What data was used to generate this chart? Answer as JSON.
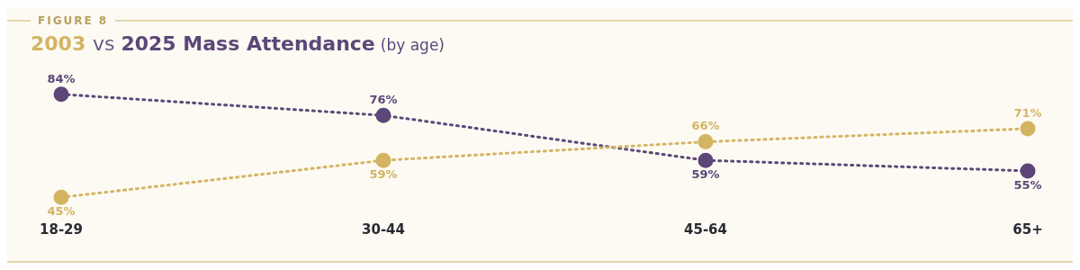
{
  "chart_data": {
    "type": "line",
    "title": "2003 vs 2025 Mass Attendance",
    "subtitle": "(by age)",
    "annotations": [
      "FIGURE 8"
    ],
    "categories": [
      "18-29",
      "30-44",
      "45-64",
      "65+"
    ],
    "series": [
      {
        "color": "#d4b462",
        "values": [
          45,
          59,
          66,
          71
        ],
        "value_labels": [
          "45%",
          "59%",
          "66%",
          "71%"
        ]
      },
      {
        "color": "#5c4778",
        "values": [
          84,
          76,
          59,
          55
        ],
        "value_labels": [
          "84%",
          "76%",
          "59%",
          "55%"
        ]
      }
    ],
    "marker": "circle",
    "line_style": "dotted",
    "grid": false,
    "legend": false,
    "tick_labels": "x"
  }
}
